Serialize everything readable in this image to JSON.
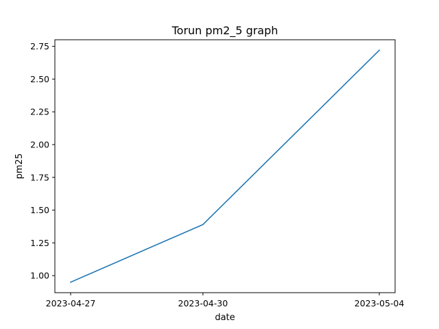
{
  "chart_data": {
    "type": "line",
    "title": "Torun pm2_5 graph",
    "xlabel": "date",
    "ylabel": "pm25",
    "x": [
      "2023-04-27",
      "2023-04-30",
      "2023-05-04"
    ],
    "series": [
      {
        "values": [
          0.95,
          1.39,
          2.72
        ],
        "color": "#1f77b4"
      }
    ],
    "x_ticks": [
      "2023-04-27",
      "2023-04-30",
      "2023-05-04"
    ],
    "y_ticks": [
      "1.00",
      "1.25",
      "1.50",
      "1.75",
      "2.00",
      "2.25",
      "2.50",
      "2.75"
    ],
    "ylim": [
      0.87,
      2.8
    ],
    "grid": false
  }
}
